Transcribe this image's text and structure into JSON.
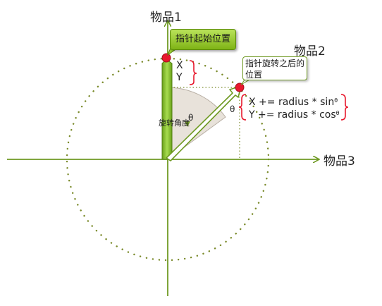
{
  "axes": {
    "y_top_label": "物品1",
    "x_right_label": "物品3"
  },
  "pointer2_label": "物品2",
  "callouts": {
    "start_position": "指针起始位置",
    "after_rotation": "指针旋转之后的位置"
  },
  "start_point": {
    "x_label": "X",
    "y_label": "Y"
  },
  "formula": {
    "line1": "X += radius * sin",
    "line2": "Y += radius * cos",
    "theta": "θ"
  },
  "rotation_angle_label": "旋转角度",
  "theta_symbol": "θ",
  "colors": {
    "axis": "#6f9a23",
    "pointer_fill": "#8cc63f",
    "marker": "#e8182d",
    "brace": "#e8182d",
    "sector": "#e8e2da"
  }
}
